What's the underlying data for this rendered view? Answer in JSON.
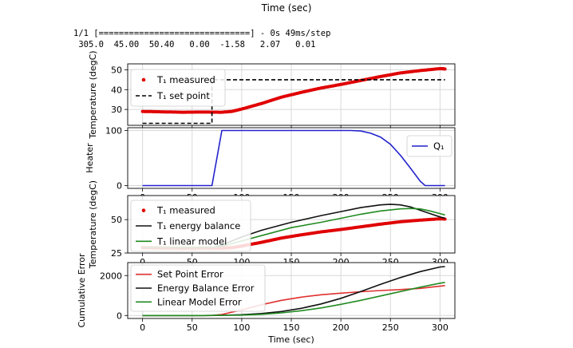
{
  "header": {
    "top_label": "Time (sec)",
    "console_line_1": "1/1 [==============================] - 0s 49ms/step",
    "console_line_2": " 305.0  45.00  50.40   0.00  -1.58   2.07   0.01"
  },
  "colors": {
    "measured": "#e00000",
    "setpoint": "#000000",
    "heater": "#2222cc",
    "energy": "#111111",
    "linear": "#228b22",
    "sp_error": "#e03030",
    "grid": "#d8d8d8"
  },
  "chart_data": [
    {
      "type": "line",
      "ylabel": "Temperature (degC)",
      "xlim": [
        -15,
        315
      ],
      "ylim": [
        22,
        53
      ],
      "x_ticks": [
        0,
        50,
        100,
        150,
        200,
        250,
        300
      ],
      "y_ticks": [
        30,
        40,
        50
      ],
      "x_tick_labels": [
        "0",
        "50",
        "100",
        "150",
        "200",
        "250",
        "300"
      ],
      "y_tick_labels": [
        "30",
        "40",
        "50"
      ],
      "grid": true,
      "legend": "upper-left",
      "series": [
        {
          "name": "T₁ measured",
          "style": "markers",
          "x": [
            0,
            20,
            40,
            60,
            80,
            90,
            100,
            120,
            140,
            160,
            180,
            200,
            220,
            240,
            260,
            280,
            300,
            305
          ],
          "y": [
            29.0,
            28.8,
            28.6,
            28.7,
            28.6,
            29.0,
            30.2,
            33.0,
            36.2,
            38.6,
            40.8,
            42.6,
            44.6,
            46.6,
            48.4,
            49.6,
            50.6,
            50.4
          ]
        },
        {
          "name": "T₁ set point",
          "style": "dashed",
          "x": [
            0,
            70,
            70,
            305
          ],
          "y": [
            23,
            23,
            45,
            45
          ]
        }
      ]
    },
    {
      "type": "line",
      "ylabel": "Heater",
      "xlim": [
        -15,
        315
      ],
      "ylim": [
        -5,
        105
      ],
      "x_ticks": [
        0,
        50,
        100,
        150,
        200,
        250,
        300
      ],
      "y_ticks": [
        0,
        100
      ],
      "x_tick_labels": [
        "0",
        "50",
        "100",
        "150",
        "200",
        "250",
        "300"
      ],
      "y_tick_labels": [
        "0",
        "100"
      ],
      "grid": true,
      "legend": "upper-right",
      "series": [
        {
          "name": "Q₁",
          "x": [
            0,
            70,
            80,
            210,
            220,
            230,
            240,
            250,
            260,
            270,
            280,
            285,
            305
          ],
          "y": [
            0,
            0,
            100,
            100,
            99,
            95,
            88,
            75,
            55,
            32,
            8,
            0,
            0
          ]
        }
      ]
    },
    {
      "type": "line",
      "ylabel": "Temperature (degC)",
      "xlim": [
        -15,
        315
      ],
      "ylim": [
        25,
        68
      ],
      "x_ticks": [
        0,
        50,
        100,
        150,
        200,
        250,
        300
      ],
      "y_ticks": [
        25,
        50
      ],
      "x_tick_labels": [
        "0",
        "50",
        "100",
        "150",
        "200",
        "250",
        "300"
      ],
      "y_tick_labels": [
        "25",
        "50"
      ],
      "grid": true,
      "legend": "lower-left",
      "series": [
        {
          "name": "T₁ measured",
          "style": "markers",
          "x": [
            0,
            20,
            40,
            60,
            80,
            90,
            100,
            120,
            140,
            160,
            180,
            200,
            220,
            240,
            260,
            280,
            300,
            305
          ],
          "y": [
            29.0,
            28.8,
            28.6,
            28.7,
            28.6,
            29.0,
            30.2,
            33.0,
            36.2,
            38.6,
            40.8,
            42.6,
            44.6,
            46.6,
            48.4,
            49.6,
            50.6,
            50.4
          ]
        },
        {
          "name": "T₁ energy balance",
          "x": [
            0,
            70,
            80,
            100,
            120,
            150,
            180,
            200,
            220,
            240,
            250,
            260,
            270,
            280,
            290,
            300,
            305
          ],
          "y": [
            29,
            29,
            31,
            37,
            42,
            48,
            53,
            56,
            59,
            61,
            61.5,
            61,
            59.5,
            57,
            54.5,
            52,
            51
          ]
        },
        {
          "name": "T₁ linear model",
          "x": [
            0,
            70,
            80,
            100,
            120,
            150,
            180,
            200,
            220,
            240,
            260,
            270,
            280,
            290,
            300,
            305
          ],
          "y": [
            29,
            29,
            30,
            34,
            38,
            44,
            48,
            51,
            54,
            56.5,
            58,
            58.3,
            58,
            56.5,
            54.5,
            53.5
          ]
        }
      ]
    },
    {
      "type": "line",
      "ylabel": "Cumulative Error",
      "xlabel": "Time (sec)",
      "xlim": [
        -15,
        315
      ],
      "ylim": [
        -150,
        2650
      ],
      "x_ticks": [
        0,
        50,
        100,
        150,
        200,
        250,
        300
      ],
      "y_ticks": [
        0,
        2000
      ],
      "x_tick_labels": [
        "0",
        "50",
        "100",
        "150",
        "200",
        "250",
        "300"
      ],
      "y_tick_labels": [
        "0",
        "2000"
      ],
      "grid": true,
      "legend": "upper-left",
      "series": [
        {
          "name": "Set Point Error",
          "x": [
            0,
            70,
            80,
            100,
            120,
            140,
            160,
            180,
            200,
            220,
            240,
            260,
            280,
            305
          ],
          "y": [
            0,
            0,
            50,
            280,
            540,
            760,
            920,
            1040,
            1120,
            1190,
            1250,
            1300,
            1360,
            1500
          ]
        },
        {
          "name": "Energy Balance Error",
          "x": [
            0,
            60,
            80,
            100,
            120,
            140,
            160,
            180,
            200,
            220,
            240,
            260,
            280,
            300,
            305
          ],
          "y": [
            0,
            0,
            10,
            40,
            100,
            200,
            360,
            580,
            860,
            1200,
            1560,
            1900,
            2200,
            2430,
            2450
          ]
        },
        {
          "name": "Linear Model Error",
          "x": [
            0,
            60,
            80,
            100,
            120,
            140,
            160,
            180,
            200,
            220,
            240,
            260,
            280,
            300,
            305
          ],
          "y": [
            0,
            0,
            5,
            20,
            60,
            130,
            240,
            380,
            560,
            760,
            980,
            1200,
            1420,
            1620,
            1660
          ]
        }
      ]
    }
  ]
}
